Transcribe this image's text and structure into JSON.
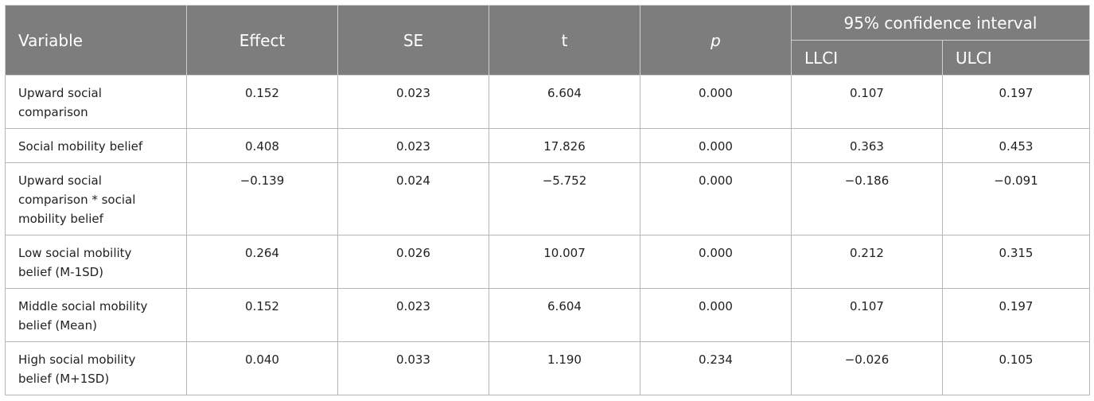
{
  "table": {
    "header": [
      "Variable",
      "Effect",
      "SE",
      "t",
      "p"
    ],
    "group_header": "95% confidence interval",
    "sub_header": [
      "LLCI",
      "ULCI"
    ],
    "rows": [
      [
        "Upward social comparison",
        "0.152",
        "0.023",
        "6.604",
        "0.000",
        "0.107",
        "0.197"
      ],
      [
        "Social mobility belief",
        "0.408",
        "0.023",
        "17.826",
        "0.000",
        "0.363",
        "0.453"
      ],
      [
        "Upward social comparison * social mobility belief",
        "−0.139",
        "0.024",
        "−5.752",
        "0.000",
        "−0.186",
        "−0.091"
      ],
      [
        "Low social mobility belief (M-1SD)",
        "0.264",
        "0.026",
        "10.007",
        "0.000",
        "0.212",
        "0.315"
      ],
      [
        "Middle social mobility belief (Mean)",
        "0.152",
        "0.023",
        "6.604",
        "0.000",
        "0.107",
        "0.197"
      ],
      [
        "High social mobility belief (M+1SD)",
        "0.040",
        "0.033",
        "1.190",
        "0.234",
        "−0.026",
        "0.105"
      ]
    ]
  }
}
